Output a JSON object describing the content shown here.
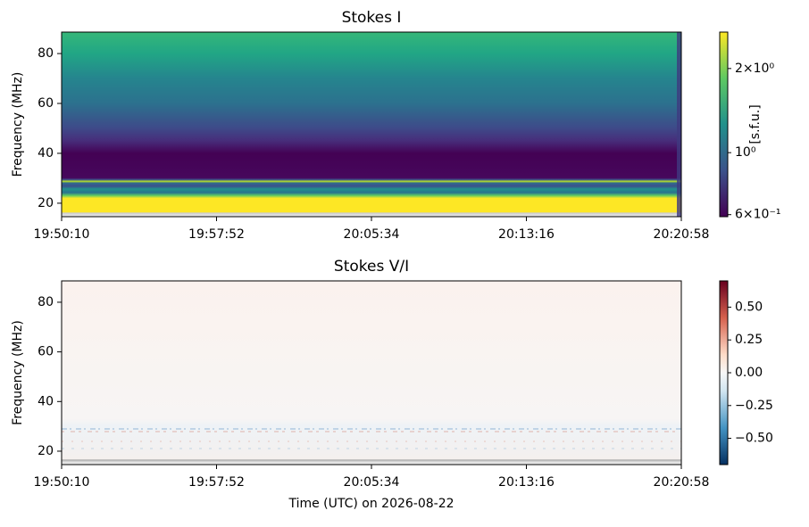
{
  "chart_data": [
    {
      "type": "heatmap",
      "title": "Stokes I",
      "ylabel": "Frequency (MHz)",
      "xlim": [
        "19:50:10",
        "20:20:58"
      ],
      "xticks": [
        "19:50:10",
        "19:57:52",
        "20:05:34",
        "20:13:16",
        "20:20:58"
      ],
      "ylim": [
        14.6,
        88.6
      ],
      "yticks": [
        20,
        40,
        60,
        80
      ],
      "colorbar": {
        "label": "[s.f.u.]",
        "cmap": "viridis",
        "log": true,
        "lim": [
          0.59,
          2.7
        ],
        "ticks": [
          {
            "value": 2,
            "label": "2×10⁰"
          },
          {
            "value": 1,
            "label": "10⁰"
          },
          {
            "value": 0.6,
            "label": "6×10⁻¹"
          }
        ]
      }
    },
    {
      "type": "heatmap",
      "title": "Stokes V/I",
      "ylabel": "Frequency (MHz)",
      "xlabel": "Time (UTC) on 2026-08-22",
      "xlim": [
        "19:50:10",
        "20:20:58"
      ],
      "xticks": [
        "19:50:10",
        "19:57:52",
        "20:05:34",
        "20:13:16",
        "20:20:58"
      ],
      "ylim": [
        14.6,
        88.6
      ],
      "yticks": [
        20,
        40,
        60,
        80
      ],
      "colorbar": {
        "cmap": "RdBu_r",
        "log": false,
        "lim": [
          -0.7,
          0.7
        ],
        "ticks": [
          {
            "value": 0.5,
            "label": "0.50"
          },
          {
            "value": 0.25,
            "label": "0.25"
          },
          {
            "value": 0,
            "label": "0.00"
          },
          {
            "value": -0.25,
            "label": "−0.25"
          },
          {
            "value": -0.5,
            "label": "−0.50"
          }
        ]
      }
    }
  ]
}
